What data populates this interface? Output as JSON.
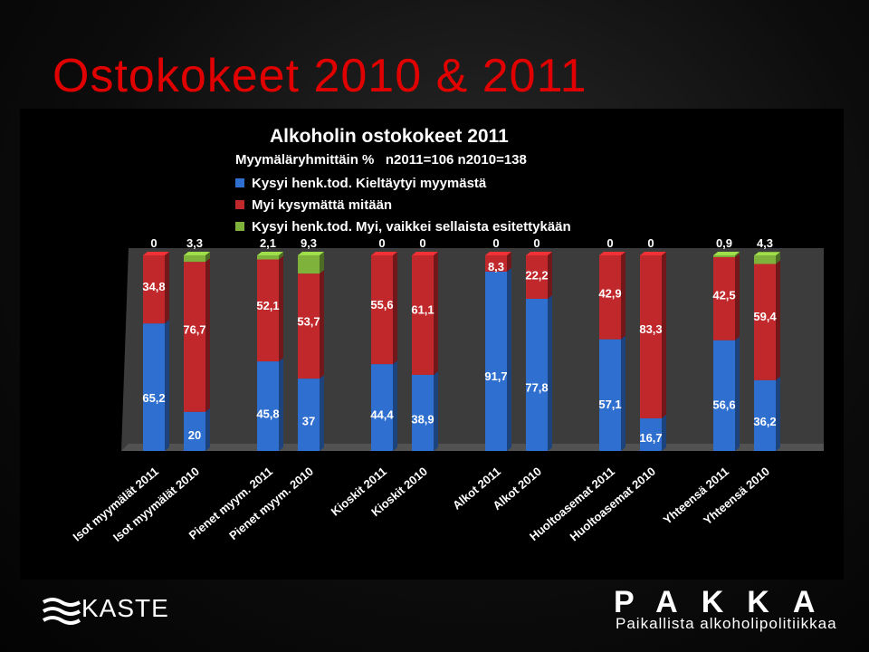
{
  "slide": {
    "title": "Ostokokeet 2010 & 2011",
    "logo_left": "KASTE",
    "logo_right_name": "PAKKA",
    "logo_right_sub": "Paikallista alkoholipolitiikkaa"
  },
  "colors": {
    "blue": "#2f6fcf",
    "red": "#c0282b",
    "green": "#7fb23a",
    "title_red": "#e00000"
  },
  "chart_data": {
    "type": "bar",
    "stacked": true,
    "title": "Alkoholin ostokokeet 2011",
    "subtitle": "Myymäläryhmittäin %   n2011=106 n2010=138",
    "ylim": [
      0,
      100
    ],
    "grid": false,
    "legend_position": "top-left",
    "categories": [
      "Isot myymälät 2011",
      "Isot myymälät 2010",
      "Pienet myym. 2011",
      "Pienet myym. 2010",
      "Kioskit 2011",
      "Kioskit 2010",
      "Alkot 2011",
      "Alkot 2010",
      "Huoltoasemat 2011",
      "Huoltoasemat 2010",
      "Yhteensä 2011",
      "Yhteensä 2010"
    ],
    "series": [
      {
        "name": "Kysyi henk.tod. Kieltäytyi myymästä",
        "color": "#2f6fcf",
        "values": [
          65.2,
          20,
          45.8,
          37,
          44.4,
          38.9,
          91.7,
          77.8,
          57.1,
          16.7,
          56.6,
          36.2
        ],
        "labels": [
          "65,2",
          "20",
          "45,8",
          "37",
          "44,4",
          "38,9",
          "91,7",
          "77,8",
          "57,1",
          "16,7",
          "56,6",
          "36,2"
        ]
      },
      {
        "name": "Myi kysymättä mitään",
        "color": "#c0282b",
        "values": [
          34.8,
          76.7,
          52.1,
          53.7,
          55.6,
          61.1,
          8.3,
          22.2,
          42.9,
          83.3,
          42.5,
          59.4
        ],
        "labels": [
          "34,8",
          "76,7",
          "52,1",
          "53,7",
          "55,6",
          "61,1",
          "8,3",
          "22,2",
          "42,9",
          "83,3",
          "42,5",
          "59,4"
        ]
      },
      {
        "name": "Kysyi henk.tod. Myi, vaikkei sellaista esitettykään",
        "color": "#7fb23a",
        "values": [
          0,
          3.3,
          2.1,
          9.3,
          0,
          0,
          0,
          0,
          0,
          0,
          0.9,
          4.3
        ],
        "labels": [
          "0",
          "3,3",
          "2,1",
          "9,3",
          "0",
          "0",
          "0",
          "0",
          "0",
          "0",
          "0,9",
          "4,3"
        ]
      }
    ]
  }
}
